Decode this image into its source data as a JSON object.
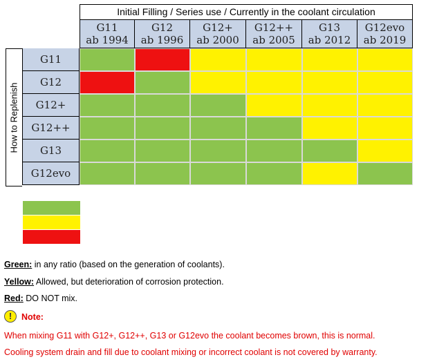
{
  "header": {
    "title": "Initial Filling / Series use / Currently in the coolant circulation"
  },
  "columns": [
    {
      "name": "G11",
      "since": "ab 1994"
    },
    {
      "name": "G12",
      "since": "ab 1996"
    },
    {
      "name": "G12+",
      "since": "ab 2000"
    },
    {
      "name": "G12++",
      "since": "ab 2005"
    },
    {
      "name": "G13",
      "since": "ab 2012"
    },
    {
      "name": "G12evo",
      "since": "ab 2019"
    }
  ],
  "row_axis_label": "How to Replenish",
  "rows": [
    {
      "name": "G11",
      "cells": [
        "green",
        "red",
        "yellow",
        "yellow",
        "yellow",
        "yellow"
      ]
    },
    {
      "name": "G12",
      "cells": [
        "red",
        "green",
        "yellow",
        "yellow",
        "yellow",
        "yellow"
      ]
    },
    {
      "name": "G12+",
      "cells": [
        "green",
        "green",
        "green",
        "yellow",
        "yellow",
        "yellow"
      ]
    },
    {
      "name": "G12++",
      "cells": [
        "green",
        "green",
        "green",
        "green",
        "yellow",
        "yellow"
      ]
    },
    {
      "name": "G13",
      "cells": [
        "green",
        "green",
        "green",
        "green",
        "green",
        "yellow"
      ]
    },
    {
      "name": "G12evo",
      "cells": [
        "green",
        "green",
        "green",
        "green",
        "yellow",
        "green"
      ]
    }
  ],
  "colors": {
    "green": "#8cc44e",
    "yellow": "#fff200",
    "red": "#ee1111"
  },
  "legend": {
    "green": {
      "label": "Green:",
      "text": " in any ratio (based on the generation of coolants)."
    },
    "yellow": {
      "label": "Yellow:",
      "text": " Allowed, but deterioration of corrosion protection."
    },
    "red": {
      "label": "Red:",
      "text": " DO NOT mix."
    }
  },
  "note": {
    "icon": "exclamation-icon",
    "icon_glyph": "!",
    "title": "Note:",
    "line1": "When mixing G11 with G12+, G12++, G13 or G12evo the coolant becomes brown, this is normal.",
    "line2": "Cooling system drain and fill due to coolant mixing or incorrect coolant is not covered by warranty."
  }
}
